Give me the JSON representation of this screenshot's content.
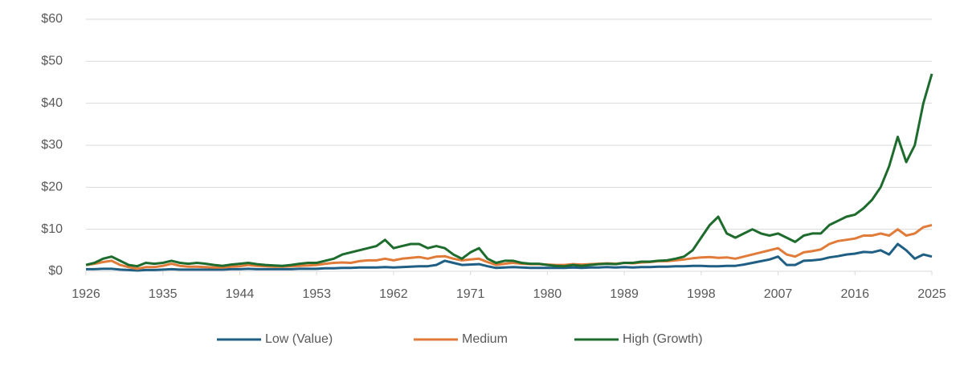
{
  "chart_data": {
    "type": "line",
    "x": [
      1926,
      1927,
      1928,
      1929,
      1930,
      1931,
      1932,
      1933,
      1934,
      1935,
      1936,
      1937,
      1938,
      1939,
      1940,
      1941,
      1942,
      1943,
      1944,
      1945,
      1946,
      1947,
      1948,
      1949,
      1950,
      1951,
      1952,
      1953,
      1954,
      1955,
      1956,
      1957,
      1958,
      1959,
      1960,
      1961,
      1962,
      1963,
      1964,
      1965,
      1966,
      1967,
      1968,
      1969,
      1970,
      1971,
      1972,
      1973,
      1974,
      1975,
      1976,
      1977,
      1978,
      1979,
      1980,
      1981,
      1982,
      1983,
      1984,
      1985,
      1986,
      1987,
      1988,
      1989,
      1990,
      1991,
      1992,
      1993,
      1994,
      1995,
      1996,
      1997,
      1998,
      1999,
      2000,
      2001,
      2002,
      2003,
      2004,
      2005,
      2006,
      2007,
      2008,
      2009,
      2010,
      2011,
      2012,
      2013,
      2014,
      2015,
      2016,
      2017,
      2018,
      2019,
      2020,
      2021,
      2022,
      2023,
      2024,
      2025
    ],
    "series": [
      {
        "name": "Low (Value)",
        "color": "#1f5f84",
        "values": [
          0.5,
          0.5,
          0.6,
          0.6,
          0.4,
          0.3,
          0.2,
          0.3,
          0.3,
          0.4,
          0.5,
          0.4,
          0.4,
          0.4,
          0.4,
          0.4,
          0.4,
          0.5,
          0.5,
          0.6,
          0.5,
          0.5,
          0.5,
          0.5,
          0.5,
          0.6,
          0.6,
          0.6,
          0.7,
          0.7,
          0.8,
          0.8,
          0.9,
          0.9,
          0.9,
          1.0,
          0.9,
          1.0,
          1.1,
          1.2,
          1.2,
          1.5,
          2.5,
          2.0,
          1.5,
          1.6,
          1.7,
          1.2,
          0.8,
          0.9,
          1.0,
          0.9,
          0.8,
          0.8,
          0.8,
          0.8,
          0.8,
          0.9,
          0.8,
          0.9,
          0.9,
          1.0,
          0.9,
          1.0,
          0.9,
          1.0,
          1.0,
          1.1,
          1.1,
          1.2,
          1.2,
          1.3,
          1.3,
          1.2,
          1.2,
          1.3,
          1.3,
          1.6,
          2.0,
          2.4,
          2.8,
          3.5,
          1.5,
          1.5,
          2.5,
          2.6,
          2.8,
          3.3,
          3.6,
          4.0,
          4.2,
          4.6,
          4.5,
          5.0,
          4.0,
          6.5,
          5.0,
          3.0,
          4.0,
          3.5
        ]
      },
      {
        "name": "Medium",
        "color": "#e07b39",
        "values": [
          1.5,
          1.8,
          2.2,
          2.5,
          1.5,
          1.0,
          0.6,
          1.0,
          1.0,
          1.3,
          1.8,
          1.3,
          1.1,
          1.1,
          1.0,
          0.9,
          0.9,
          1.1,
          1.2,
          1.5,
          1.3,
          1.2,
          1.1,
          1.1,
          1.2,
          1.3,
          1.4,
          1.5,
          1.8,
          2.0,
          2.1,
          2.0,
          2.4,
          2.6,
          2.6,
          3.0,
          2.6,
          3.0,
          3.2,
          3.4,
          3.0,
          3.5,
          3.6,
          3.0,
          2.6,
          2.8,
          3.0,
          2.2,
          1.5,
          1.8,
          2.0,
          1.8,
          1.7,
          1.7,
          1.6,
          1.5,
          1.5,
          1.7,
          1.6,
          1.7,
          1.8,
          1.9,
          1.8,
          2.0,
          1.9,
          2.1,
          2.2,
          2.4,
          2.4,
          2.6,
          2.8,
          3.1,
          3.3,
          3.4,
          3.2,
          3.3,
          3.0,
          3.5,
          4.0,
          4.5,
          5.0,
          5.5,
          4.0,
          3.5,
          4.5,
          4.8,
          5.2,
          6.5,
          7.2,
          7.5,
          7.8,
          8.5,
          8.5,
          9.0,
          8.5,
          10.0,
          8.5,
          9.0,
          10.5,
          11.0
        ]
      },
      {
        "name": "High (Growth)",
        "color": "#1e6b2e",
        "values": [
          1.5,
          2.0,
          3.0,
          3.5,
          2.5,
          1.5,
          1.2,
          2.0,
          1.8,
          2.0,
          2.5,
          2.0,
          1.8,
          2.0,
          1.8,
          1.5,
          1.3,
          1.6,
          1.8,
          2.0,
          1.7,
          1.5,
          1.4,
          1.3,
          1.5,
          1.8,
          2.0,
          2.0,
          2.5,
          3.0,
          4.0,
          4.5,
          5.0,
          5.5,
          6.0,
          7.5,
          5.5,
          6.0,
          6.5,
          6.5,
          5.5,
          6.0,
          5.5,
          4.0,
          3.0,
          4.5,
          5.5,
          3.0,
          2.0,
          2.5,
          2.5,
          2.0,
          1.8,
          1.8,
          1.5,
          1.3,
          1.2,
          1.5,
          1.3,
          1.5,
          1.7,
          1.8,
          1.7,
          2.0,
          2.0,
          2.3,
          2.3,
          2.5,
          2.6,
          3.0,
          3.5,
          5.0,
          8.0,
          11.0,
          13.0,
          9.0,
          8.0,
          9.0,
          10.0,
          9.0,
          8.5,
          9.0,
          8.0,
          7.0,
          8.5,
          9.0,
          9.0,
          11.0,
          12.0,
          13.0,
          13.5,
          15.0,
          17.0,
          20.0,
          25.0,
          32.0,
          26.0,
          30.0,
          40.0,
          47.0
        ]
      }
    ],
    "xlim": [
      1926,
      2025
    ],
    "xticks": [
      1926,
      1935,
      1944,
      1953,
      1962,
      1971,
      1980,
      1989,
      1998,
      2007,
      2016,
      2025
    ],
    "ylim": [
      0,
      60
    ],
    "yticks": [
      {
        "value": 0,
        "label": "$0"
      },
      {
        "value": 10,
        "label": "$10"
      },
      {
        "value": 20,
        "label": "$20"
      },
      {
        "value": 30,
        "label": "$30"
      },
      {
        "value": 40,
        "label": "$40"
      },
      {
        "value": 50,
        "label": "$50"
      },
      {
        "value": 60,
        "label": "$60"
      }
    ],
    "grid": true,
    "legend": "bottom"
  }
}
